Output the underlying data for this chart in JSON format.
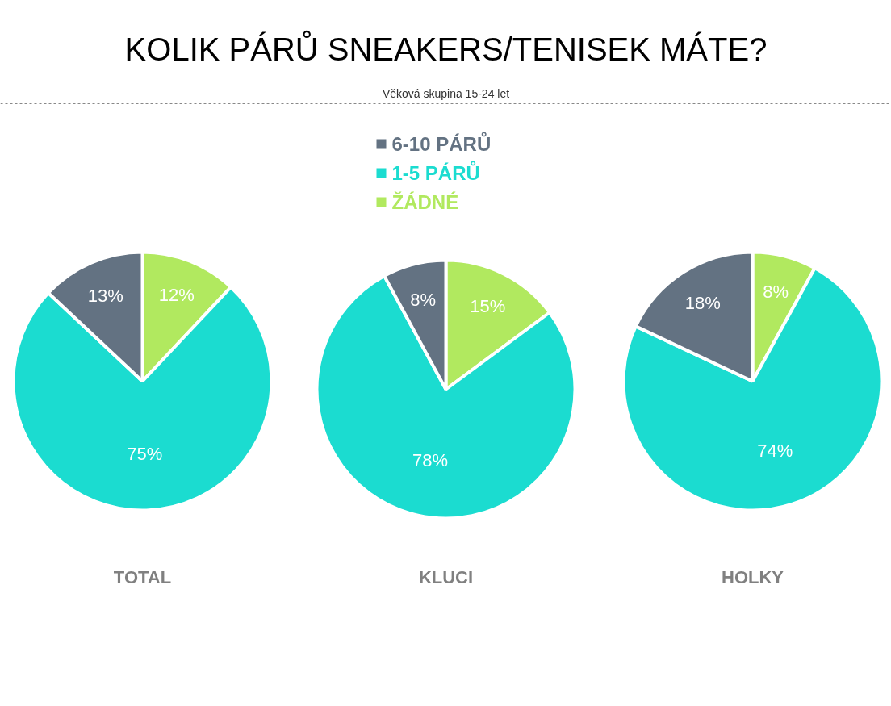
{
  "chart_data": [
    {
      "type": "pie",
      "title": "KOLIK PÁRŮ SNEAKERS/TENISEK MÁTE?",
      "legend": "top",
      "xlabel": "TOTAL",
      "categories": [
        "ŽÁDNÉ",
        "1-5 PÁRŮ",
        "6-10 PÁRŮ"
      ],
      "values": [
        12,
        75,
        13
      ],
      "colors": [
        "#b1e95f",
        "#1bdcd0",
        "#637282"
      ],
      "value_labels": [
        "12%",
        "75%",
        "13%"
      ]
    },
    {
      "type": "pie",
      "subtitle": "Věková skupina 15-24 let",
      "xlabel": "KLUCI",
      "categories": [
        null,
        null,
        null
      ],
      "values": [
        15,
        78,
        8
      ],
      "colors": [
        "#b1e95f",
        "#1bdcd0",
        "#637282"
      ],
      "value_labels": [
        "15%",
        "78%",
        "8%"
      ]
    },
    {
      "type": "pie",
      "xlabel": "HOLKY",
      "categories": [
        null,
        null,
        null
      ],
      "values": [
        8,
        74,
        18
      ],
      "colors": [
        "#b1e95f",
        "#1bdcd0",
        "#637282"
      ],
      "value_labels": [
        "8%",
        "74%",
        "18%"
      ]
    }
  ]
}
